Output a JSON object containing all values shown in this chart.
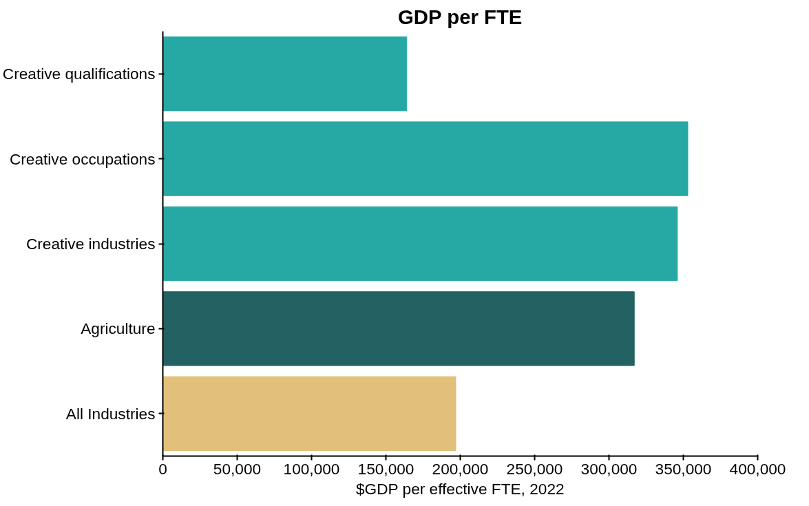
{
  "chart_data": {
    "type": "bar",
    "orientation": "horizontal",
    "title": "GDP per FTE",
    "xlabel": "$GDP per effective FTE, 2022",
    "categories": [
      "Creative qualifications",
      "Creative occupations",
      "Creative industries",
      "Agriculture",
      "All Industries"
    ],
    "values": [
      164000,
      353000,
      346000,
      317000,
      197000
    ],
    "colors": [
      "#26a8a4",
      "#26a8a4",
      "#26a8a4",
      "#236263",
      "#e3c07a"
    ],
    "xlim": [
      0,
      400000
    ],
    "xticks": [
      {
        "value": 0,
        "label": "0"
      },
      {
        "value": 50000,
        "label": "50,000"
      },
      {
        "value": 100000,
        "label": "100,000"
      },
      {
        "value": 150000,
        "label": "150,000"
      },
      {
        "value": 200000,
        "label": "200,000"
      },
      {
        "value": 250000,
        "label": "250,000"
      },
      {
        "value": 300000,
        "label": "300,000"
      },
      {
        "value": 350000,
        "label": "350,000"
      },
      {
        "value": 400000,
        "label": "400,000"
      }
    ],
    "grid": false
  }
}
